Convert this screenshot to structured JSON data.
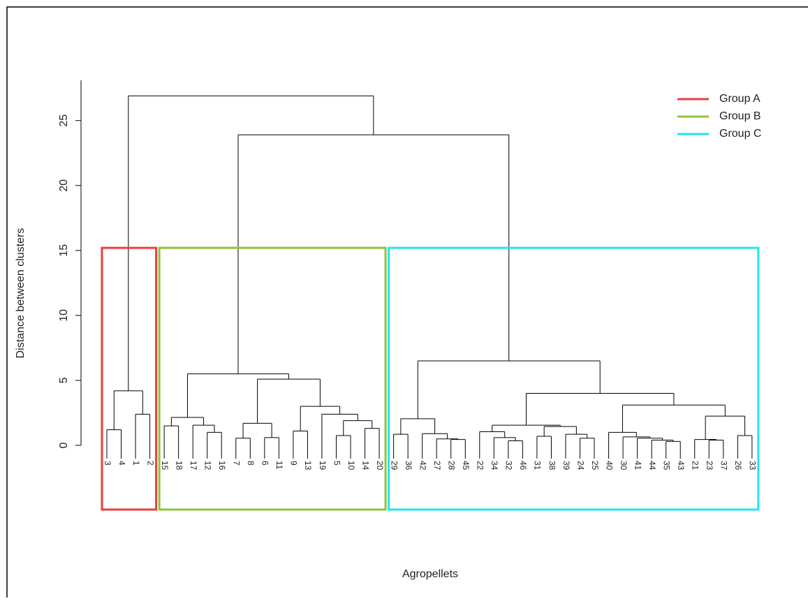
{
  "chart_data": {
    "type": "dendrogram",
    "ylabel": "Distance between clusters",
    "xlabel": "Agropellets",
    "ylim": [
      0,
      28.1
    ],
    "yticks": [
      0,
      5,
      10,
      15,
      20,
      25
    ],
    "cut_height": 15.2,
    "line_color": "#000000",
    "legend": "top-right",
    "tree": {
      "height": 26.9,
      "children": [
        {
          "height": 4.2,
          "group": {
            "name": "Group A",
            "color": "#f03c3c"
          },
          "children": [
            {
              "height": 1.2,
              "children": [
                {
                  "label": "3"
                },
                {
                  "label": "4"
                }
              ]
            },
            {
              "height": 2.4,
              "children": [
                {
                  "label": "1"
                },
                {
                  "label": "2"
                }
              ]
            }
          ]
        },
        {
          "height": 23.9,
          "children": [
            {
              "height": 5.5,
              "group": {
                "name": "Group B",
                "color": "#8cc43c"
              },
              "children": [
                {
                  "height": 2.15,
                  "children": [
                    {
                      "height": 1.5,
                      "children": [
                        {
                          "label": "15"
                        },
                        {
                          "label": "18"
                        }
                      ]
                    },
                    {
                      "height": 1.55,
                      "children": [
                        {
                          "label": "17"
                        },
                        {
                          "height": 1.0,
                          "children": [
                            {
                              "label": "12"
                            },
                            {
                              "label": "16"
                            }
                          ]
                        }
                      ]
                    }
                  ]
                },
                {
                  "height": 5.1,
                  "children": [
                    {
                      "height": 1.7,
                      "children": [
                        {
                          "height": 0.55,
                          "children": [
                            {
                              "label": "7"
                            },
                            {
                              "label": "8"
                            }
                          ]
                        },
                        {
                          "height": 0.6,
                          "children": [
                            {
                              "label": "6"
                            },
                            {
                              "label": "11"
                            }
                          ]
                        }
                      ]
                    },
                    {
                      "height": 3.0,
                      "children": [
                        {
                          "height": 1.1,
                          "children": [
                            {
                              "label": "9"
                            },
                            {
                              "label": "13"
                            }
                          ]
                        },
                        {
                          "height": 2.4,
                          "children": [
                            {
                              "label": "19"
                            },
                            {
                              "height": 1.9,
                              "children": [
                                {
                                  "height": 0.75,
                                  "children": [
                                    {
                                      "label": "5"
                                    },
                                    {
                                      "label": "10"
                                    }
                                  ]
                                },
                                {
                                  "height": 1.3,
                                  "children": [
                                    {
                                      "label": "14"
                                    },
                                    {
                                      "label": "20"
                                    }
                                  ]
                                }
                              ]
                            }
                          ]
                        }
                      ]
                    }
                  ]
                }
              ]
            },
            {
              "height": 6.5,
              "group": {
                "name": "Group C",
                "color": "#1ee6f0"
              },
              "children": [
                {
                  "height": 2.05,
                  "children": [
                    {
                      "height": 0.85,
                      "children": [
                        {
                          "label": "29"
                        },
                        {
                          "label": "36"
                        }
                      ]
                    },
                    {
                      "height": 0.9,
                      "children": [
                        {
                          "label": "42"
                        },
                        {
                          "height": 0.5,
                          "children": [
                            {
                              "label": "27"
                            },
                            {
                              "height": 0.45,
                              "children": [
                                {
                                  "label": "28"
                                },
                                {
                                  "label": "45"
                                }
                              ]
                            }
                          ]
                        }
                      ]
                    }
                  ]
                },
                {
                  "height": 4.0,
                  "children": [
                    {
                      "height": 1.55,
                      "children": [
                        {
                          "height": 1.05,
                          "children": [
                            {
                              "label": "22"
                            },
                            {
                              "height": 0.6,
                              "children": [
                                {
                                  "label": "34"
                                },
                                {
                                  "height": 0.35,
                                  "children": [
                                    {
                                      "label": "32"
                                    },
                                    {
                                      "label": "46"
                                    }
                                  ]
                                }
                              ]
                            }
                          ]
                        },
                        {
                          "height": 1.45,
                          "children": [
                            {
                              "height": 0.7,
                              "children": [
                                {
                                  "label": "31"
                                },
                                {
                                  "label": "38"
                                }
                              ]
                            },
                            {
                              "height": 0.85,
                              "children": [
                                {
                                  "label": "39"
                                },
                                {
                                  "height": 0.55,
                                  "children": [
                                    {
                                      "label": "24"
                                    },
                                    {
                                      "label": "25"
                                    }
                                  ]
                                }
                              ]
                            }
                          ]
                        }
                      ]
                    },
                    {
                      "height": 3.1,
                      "children": [
                        {
                          "height": 1.0,
                          "children": [
                            {
                              "label": "40"
                            },
                            {
                              "height": 0.65,
                              "children": [
                                {
                                  "label": "30"
                                },
                                {
                                  "height": 0.55,
                                  "children": [
                                    {
                                      "label": "41"
                                    },
                                    {
                                      "height": 0.4,
                                      "children": [
                                        {
                                          "label": "44"
                                        },
                                        {
                                          "height": 0.3,
                                          "children": [
                                            {
                                              "label": "35"
                                            },
                                            {
                                              "label": "43"
                                            }
                                          ]
                                        }
                                      ]
                                    }
                                  ]
                                }
                              ]
                            }
                          ]
                        },
                        {
                          "height": 2.25,
                          "children": [
                            {
                              "height": 0.45,
                              "children": [
                                {
                                  "label": "21"
                                },
                                {
                                  "height": 0.4,
                                  "children": [
                                    {
                                      "label": "23"
                                    },
                                    {
                                      "label": "37"
                                    }
                                  ]
                                }
                              ]
                            },
                            {
                              "height": 0.75,
                              "children": [
                                {
                                  "label": "26"
                                },
                                {
                                  "label": "33"
                                }
                              ]
                            }
                          ]
                        }
                      ]
                    }
                  ]
                }
              ]
            }
          ]
        }
      ]
    }
  }
}
